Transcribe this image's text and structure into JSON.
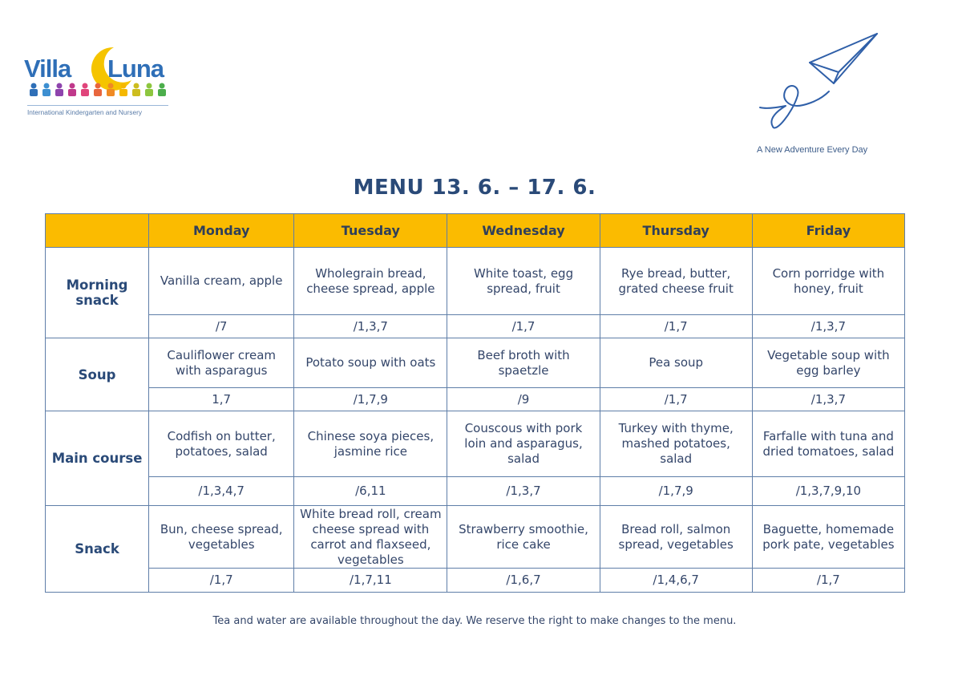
{
  "logo": {
    "word_left": "Villa",
    "word_right": "Luna",
    "subtitle": "International Kindergarten and Nursery"
  },
  "tagline": "A New Adventure Every Day",
  "title": "MENU 13. 6. – 17. 6.",
  "days": [
    "Monday",
    "Tuesday",
    "Wednesday",
    "Thursday",
    "Friday"
  ],
  "rows": [
    {
      "category": "Morning snack",
      "dishes": [
        "Vanilla cream, apple",
        "Wholegrain bread, cheese spread, apple",
        "White toast, egg spread, fruit",
        "Rye bread, butter, grated cheese fruit",
        "Corn porridge with honey, fruit"
      ],
      "allergens": [
        "/7",
        "/1,3,7",
        "/1,7",
        "/1,7",
        "/1,3,7"
      ]
    },
    {
      "category": "Soup",
      "dishes": [
        "Cauliflower cream with asparagus",
        "Potato soup with oats",
        "Beef broth with spaetzle",
        "Pea soup",
        "Vegetable soup with egg barley"
      ],
      "allergens": [
        "1,7",
        "/1,7,9",
        "/9",
        "/1,7",
        "/1,3,7"
      ]
    },
    {
      "category": "Main course",
      "dishes": [
        "Codfish on butter, potatoes, salad",
        "Chinese soya pieces, jasmine rice",
        "Couscous with pork loin and asparagus, salad",
        "Turkey with thyme, mashed potatoes, salad",
        "Farfalle with tuna and dried tomatoes, salad"
      ],
      "allergens": [
        "/1,3,4,7",
        "/6,11",
        "/1,3,7",
        "/1,7,9",
        "/1,3,7,9,10"
      ]
    },
    {
      "category": "Snack",
      "dishes": [
        "Bun, cheese spread, vegetables",
        "White bread roll, cream cheese spread with carrot and flaxseed, vegetables",
        "Strawberry smoothie, rice cake",
        "Bread roll, salmon spread, vegetables",
        "Baguette, homemade pork pate, vegetables"
      ],
      "allergens": [
        "/1,7",
        "/1,7,11",
        "/1,6,7",
        "/1,4,6,7",
        "/1,7"
      ]
    }
  ],
  "footer": "Tea and water are available throughout the day. We reserve the right to make changes to the menu.",
  "colors": {
    "header_bg": "#fbbb00",
    "title": "#2a4a78",
    "border": "#5f7ea8",
    "text": "#34466a"
  }
}
